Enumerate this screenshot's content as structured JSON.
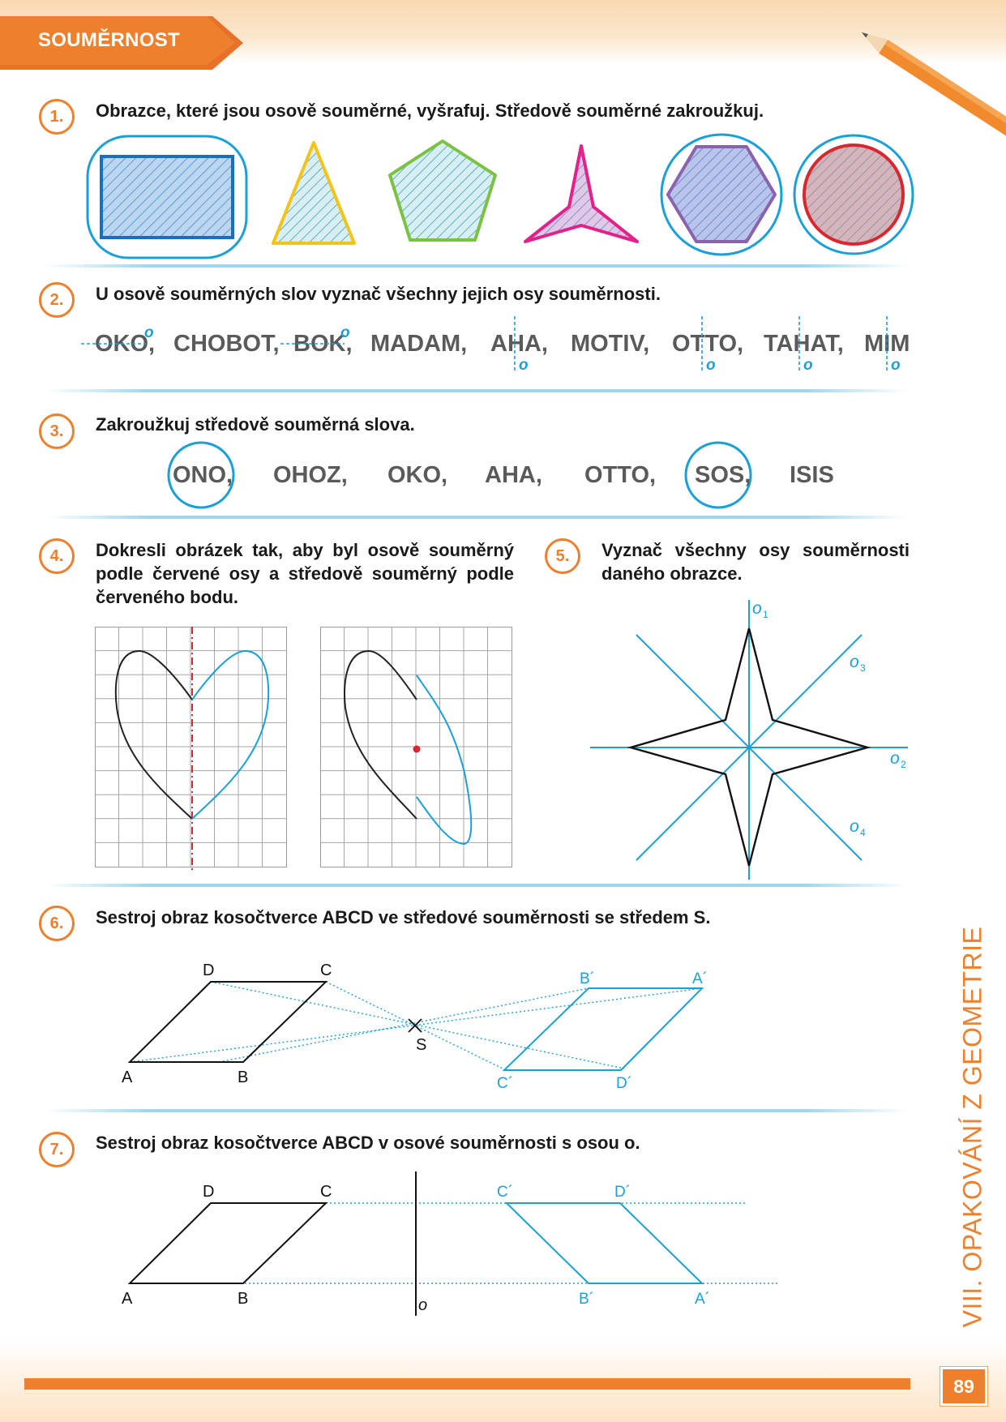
{
  "header": {
    "title": "SOUMĚRNOST"
  },
  "tasks": [
    {
      "number": "1.",
      "text": "Obrazce, které jsou osově souměrné, vyšrafuj. Středově souměrné zakroužkuj."
    },
    {
      "number": "2.",
      "text": "U osově souměrných slov vyznač všechny jejich osy souměrnosti."
    },
    {
      "number": "3.",
      "text": "Zakroužkuj středově souměrná slova."
    },
    {
      "number": "4.",
      "text": "Dokresli obrázek tak, aby byl osově souměrný podle červené osy a středově souměrný podle červeného bodu."
    },
    {
      "number": "5.",
      "text": "Vyznač všechny osy souměrnosti daného obrazce."
    },
    {
      "number": "6.",
      "text": "Sestroj obraz kosočtverce ABCD ve středové souměrnosti se středem S."
    },
    {
      "number": "7.",
      "text": "Sestroj obraz kosočtverce ABCD v osové souměrnosti s osou o."
    }
  ],
  "task1": {
    "shapes": [
      {
        "name": "rectangle",
        "symmetry": "axial+central",
        "color": "#1a6fb8"
      },
      {
        "name": "isosceles-triangle",
        "symmetry": "axial",
        "color": "#f2c418"
      },
      {
        "name": "pentagon",
        "symmetry": "axial",
        "color": "#7cc242"
      },
      {
        "name": "three-point-star",
        "symmetry": "axial",
        "color": "#e3218b"
      },
      {
        "name": "hexagon",
        "symmetry": "axial+central",
        "color": "#8b62ad"
      },
      {
        "name": "circle",
        "symmetry": "axial+central",
        "color": "#d7282f"
      }
    ]
  },
  "task2": {
    "words": [
      "OKO,",
      "CHOBOT,",
      "BOK,",
      "MADAM,",
      "AHA,",
      "MOTIV,",
      "OTTO,",
      "TAHAT,",
      "MIM"
    ],
    "axis_label": "o"
  },
  "task3": {
    "words": [
      "ONO,",
      "OHOZ,",
      "OKO,",
      "AHA,",
      "OTTO,",
      "SOS,",
      "ISIS"
    ],
    "circled": [
      "ONO,",
      "SOS,"
    ]
  },
  "task5": {
    "axes": [
      "o1",
      "o2",
      "o3",
      "o4"
    ],
    "axis_letter": "o",
    "subscripts": [
      "1",
      "2",
      "3",
      "4"
    ]
  },
  "task6": {
    "labels": {
      "A": "A",
      "B": "B",
      "C": "C",
      "D": "D",
      "S": "S",
      "A1": "A´",
      "B1": "B´",
      "C1": "C´",
      "D1": "D´"
    }
  },
  "task7": {
    "labels": {
      "A": "A",
      "B": "B",
      "C": "C",
      "D": "D",
      "axis": "o",
      "A1": "A´",
      "B1": "B´",
      "C1": "C´",
      "D1": "D´"
    }
  },
  "sidebar": {
    "text": "VIII. OPAKOVÁNÍ Z GEOMETRIE"
  },
  "footer": {
    "page_number": "89"
  },
  "colors": {
    "accent": "#ee7f2d",
    "answer_blue": "#1aa0d8",
    "axis_red": "#d7282f"
  }
}
